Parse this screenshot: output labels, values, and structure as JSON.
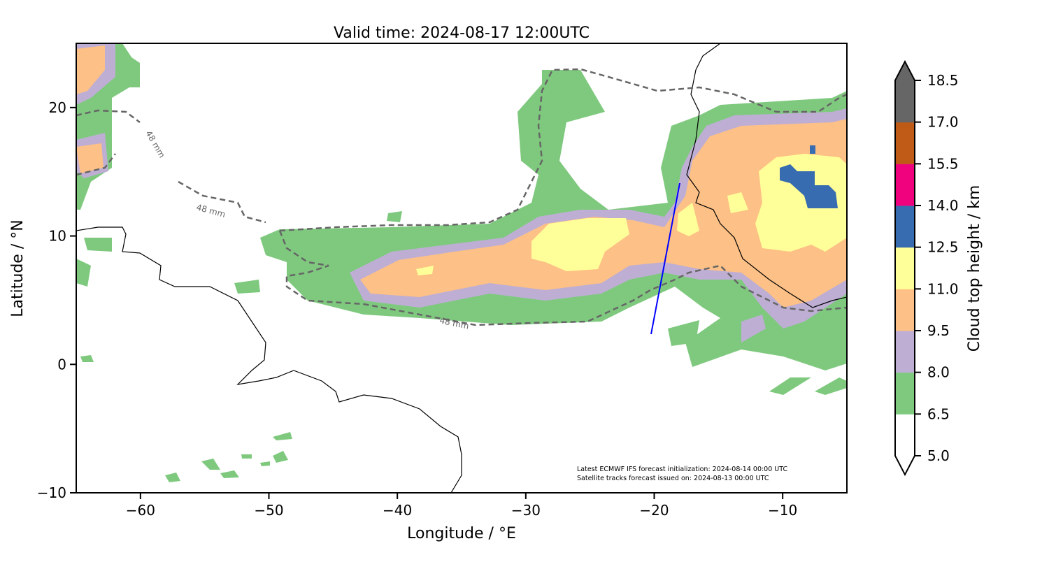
{
  "title": "Valid time: 2024-08-17 12:00UTC",
  "xaxis": {
    "label": "Longitude / °E",
    "ticks": [
      "−60",
      "−50",
      "−40",
      "−30",
      "−20",
      "−10"
    ],
    "tick_values": [
      -60,
      -50,
      -40,
      -30,
      -20,
      -10
    ],
    "range": [
      -65,
      -5
    ]
  },
  "yaxis": {
    "label": "Latitude / °N",
    "ticks": [
      "20",
      "10",
      "0",
      "−10"
    ],
    "tick_values": [
      20,
      10,
      0,
      -10
    ],
    "range": [
      -10,
      25
    ]
  },
  "contour_label": "48 mm",
  "annotation": {
    "line1": "Latest ECMWF IFS forecast initialization: 2024-08-14 00:00 UTC",
    "line2": "Satellite tracks forecast issued on: 2024-08-13 00:00 UTC"
  },
  "colorbar": {
    "label": "Cloud top height / km",
    "ticks": [
      "5.0",
      "6.5",
      "8.0",
      "9.5",
      "11.0",
      "12.5",
      "14.0",
      "15.5",
      "17.0",
      "18.5"
    ],
    "colors": [
      "#ffffff",
      "#7fc97f",
      "#beaed4",
      "#fdc086",
      "#ffff99",
      "#386cb0",
      "#f0027f",
      "#bf5b17",
      "#666666"
    ],
    "extend": "both"
  },
  "colors": {
    "track": "#0000ff",
    "contour": "#666666",
    "coast": "#000000"
  },
  "chart_data": {
    "type": "heatmap",
    "title": "Valid time: 2024-08-17 12:00UTC",
    "xlabel": "Longitude / °E",
    "ylabel": "Latitude / °N",
    "xlim": [
      -65,
      -5
    ],
    "ylim": [
      -10,
      25
    ],
    "satellite_track": [
      [
        -20.2,
        2.4
      ],
      [
        -17.9,
        14.1
      ]
    ],
    "contour_level": "48 mm"
  }
}
